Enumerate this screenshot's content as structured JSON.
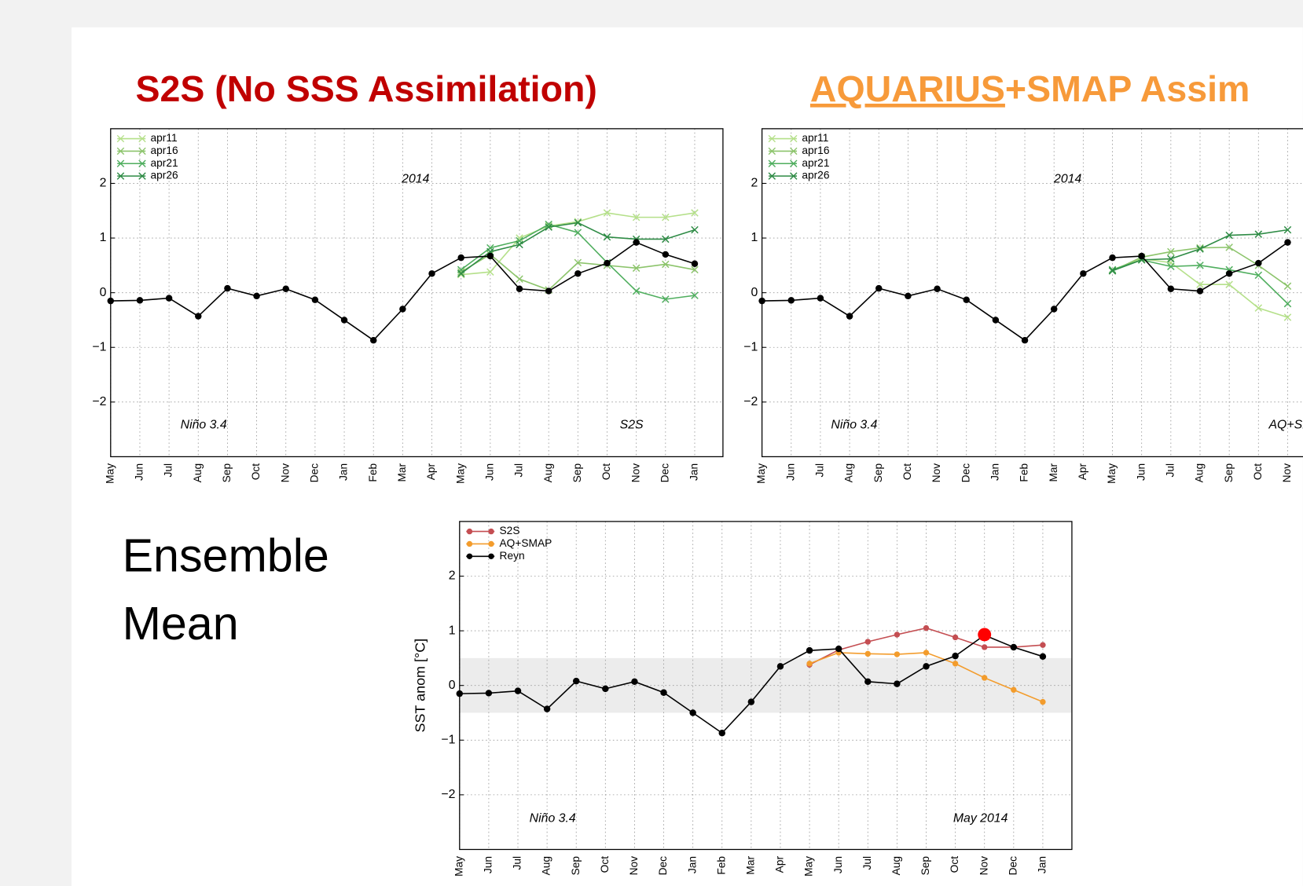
{
  "slide": {
    "title_left": "S2S (No SSS Assimilation)",
    "title_right_underlined": "AQUARIUS",
    "title_right_rest": "+SMAP Assim",
    "side_label": [
      "Ensemble",
      "Mean"
    ]
  },
  "chart_data": [
    {
      "type": "line",
      "categories": [
        "May",
        "Jun",
        "Jul",
        "Aug",
        "Sep",
        "Oct",
        "Nov",
        "Dec",
        "Jan",
        "Feb",
        "Mar",
        "Apr",
        "May",
        "Jun",
        "Jul",
        "Aug",
        "Sep",
        "Oct",
        "Nov",
        "Dec",
        "Jan"
      ],
      "ylim": [
        -3,
        3
      ],
      "yticks": [
        {
          "value": -2,
          "label": "−2"
        },
        {
          "value": -1,
          "label": "−1"
        },
        0,
        1,
        2
      ],
      "grid": true,
      "legend": "upper left",
      "annotations": [
        "2014",
        "Niño 3.4",
        "S2S"
      ],
      "series": [
        {
          "name": "apr11",
          "color": "#b5e08a",
          "marker": "x",
          "values": [
            null,
            null,
            null,
            null,
            null,
            null,
            null,
            null,
            null,
            null,
            null,
            null,
            0.33,
            0.38,
            1.0,
            1.22,
            1.3,
            1.46,
            1.38,
            1.38,
            1.46
          ]
        },
        {
          "name": "apr16",
          "color": "#8cc46b",
          "marker": "x",
          "values": [
            null,
            null,
            null,
            null,
            null,
            null,
            null,
            null,
            null,
            null,
            null,
            null,
            0.38,
            0.7,
            0.25,
            0.05,
            0.55,
            0.5,
            0.45,
            0.52,
            0.42
          ]
        },
        {
          "name": "apr21",
          "color": "#4fae5e",
          "marker": "x",
          "values": [
            null,
            null,
            null,
            null,
            null,
            null,
            null,
            null,
            null,
            null,
            null,
            null,
            0.42,
            0.82,
            0.95,
            1.25,
            1.1,
            0.55,
            0.03,
            -0.12,
            -0.05
          ]
        },
        {
          "name": "apr26",
          "color": "#2e8b45",
          "marker": "x",
          "values": [
            null,
            null,
            null,
            null,
            null,
            null,
            null,
            null,
            null,
            null,
            null,
            null,
            0.35,
            0.75,
            0.88,
            1.2,
            1.28,
            1.02,
            0.98,
            0.98,
            1.15
          ]
        },
        {
          "color": "#000000",
          "marker": "o",
          "values": [
            -0.15,
            -0.14,
            -0.1,
            -0.43,
            0.08,
            -0.06,
            0.07,
            -0.13,
            -0.5,
            -0.87,
            -0.3,
            0.35,
            0.64,
            0.67,
            0.07,
            0.03,
            0.35,
            0.54,
            0.92,
            0.7,
            0.53
          ]
        }
      ]
    },
    {
      "type": "line",
      "categories": [
        "May",
        "Jun",
        "Jul",
        "Aug",
        "Sep",
        "Oct",
        "Nov",
        "Dec",
        "Jan",
        "Feb",
        "Mar",
        "Apr",
        "May",
        "Jun",
        "Jul",
        "Aug",
        "Sep",
        "Oct",
        "Nov"
      ],
      "ylim": [
        -3,
        3
      ],
      "yticks": [
        {
          "value": -2,
          "label": "−2"
        },
        {
          "value": -1,
          "label": "−1"
        },
        0,
        1,
        2
      ],
      "grid": true,
      "legend": "upper left",
      "annotations": [
        "2014",
        "Niño 3.4",
        "AQ+SM"
      ],
      "series": [
        {
          "name": "apr11",
          "color": "#b5e08a",
          "marker": "x",
          "values": [
            null,
            null,
            null,
            null,
            null,
            null,
            null,
            null,
            null,
            null,
            null,
            null,
            0.42,
            0.62,
            0.55,
            0.15,
            0.15,
            -0.28,
            -0.45
          ]
        },
        {
          "name": "apr16",
          "color": "#8cc46b",
          "marker": "x",
          "values": [
            null,
            null,
            null,
            null,
            null,
            null,
            null,
            null,
            null,
            null,
            null,
            null,
            0.4,
            0.65,
            0.75,
            0.82,
            0.83,
            0.5,
            0.12
          ]
        },
        {
          "name": "apr21",
          "color": "#4fae5e",
          "marker": "x",
          "values": [
            null,
            null,
            null,
            null,
            null,
            null,
            null,
            null,
            null,
            null,
            null,
            null,
            0.42,
            0.6,
            0.48,
            0.5,
            0.42,
            0.32,
            -0.2
          ]
        },
        {
          "name": "apr26",
          "color": "#2e8b45",
          "marker": "x",
          "values": [
            null,
            null,
            null,
            null,
            null,
            null,
            null,
            null,
            null,
            null,
            null,
            null,
            0.4,
            0.6,
            0.62,
            0.8,
            1.05,
            1.07,
            1.15
          ]
        },
        {
          "color": "#000000",
          "marker": "o",
          "values": [
            -0.15,
            -0.14,
            -0.1,
            -0.43,
            0.08,
            -0.06,
            0.07,
            -0.13,
            -0.5,
            -0.87,
            -0.3,
            0.35,
            0.64,
            0.67,
            0.07,
            0.03,
            0.35,
            0.54,
            0.92
          ]
        }
      ]
    },
    {
      "type": "line",
      "categories": [
        "May",
        "Jun",
        "Jul",
        "Aug",
        "Sep",
        "Oct",
        "Nov",
        "Dec",
        "Jan",
        "Feb",
        "Mar",
        "Apr",
        "May",
        "Jun",
        "Jul",
        "Aug",
        "Sep",
        "Oct",
        "Nov",
        "Dec",
        "Jan"
      ],
      "ylim": [
        -3,
        3
      ],
      "yticks": [
        {
          "value": -2,
          "label": "−2"
        },
        {
          "value": -1,
          "label": "−1"
        },
        0,
        1,
        2
      ],
      "grid": true,
      "legend": "upper left",
      "ylabel": "SST anom [°C]",
      "band": [
        -0.5,
        0.5
      ],
      "band_color": "#ececec",
      "annotations": [
        "Niño 3.4",
        "May 2014"
      ],
      "highlight": {
        "category_index": 18,
        "value": 0.93,
        "color": "#ff0000"
      },
      "series": [
        {
          "name": "S2S",
          "color": "#c44e52",
          "marker": "o",
          "values": [
            null,
            null,
            null,
            null,
            null,
            null,
            null,
            null,
            null,
            null,
            null,
            null,
            0.38,
            0.65,
            0.8,
            0.93,
            1.05,
            0.88,
            0.7,
            0.7,
            0.74
          ]
        },
        {
          "name": "AQ+SMAP",
          "color": "#f39c2c",
          "marker": "o",
          "values": [
            null,
            null,
            null,
            null,
            null,
            null,
            null,
            null,
            null,
            null,
            null,
            null,
            0.4,
            0.6,
            0.58,
            0.57,
            0.6,
            0.4,
            0.14,
            -0.08,
            -0.3
          ]
        },
        {
          "name": "Reyn",
          "color": "#000000",
          "marker": "o",
          "values": [
            -0.15,
            -0.14,
            -0.1,
            -0.43,
            0.08,
            -0.06,
            0.07,
            -0.13,
            -0.5,
            -0.87,
            -0.3,
            0.35,
            0.64,
            0.67,
            0.07,
            0.03,
            0.35,
            0.54,
            0.92,
            0.7,
            0.53
          ]
        }
      ]
    }
  ]
}
